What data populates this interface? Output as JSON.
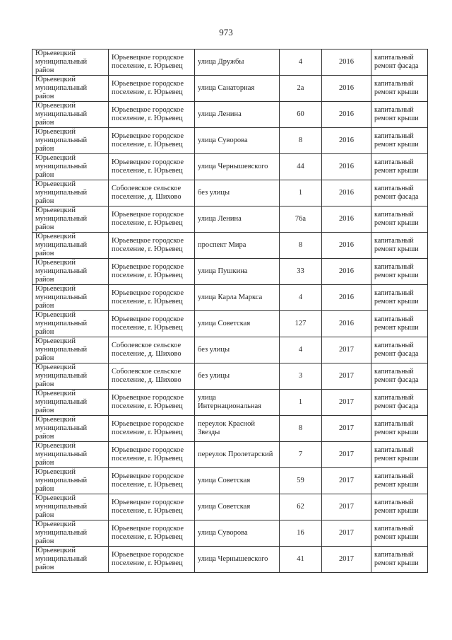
{
  "page_number": "973",
  "rows": [
    [
      "Юрьевецкий муниципальный район",
      "Юрьевецкое городское поселение, г. Юрьевец",
      "улица Дружбы",
      "4",
      "2016",
      "капитальный ремонт фасада"
    ],
    [
      "Юрьевецкий муниципальный район",
      "Юрьевецкое городское поселение, г. Юрьевец",
      "улица Санаторная",
      "2а",
      "2016",
      "капитальный ремонт крыши"
    ],
    [
      "Юрьевецкий муниципальный район",
      "Юрьевецкое городское поселение, г. Юрьевец",
      "улица Ленина",
      "60",
      "2016",
      "капитальный ремонт крыши"
    ],
    [
      "Юрьевецкий муниципальный район",
      "Юрьевецкое городское поселение, г. Юрьевец",
      "улица Суворова",
      "8",
      "2016",
      "капитальный ремонт крыши"
    ],
    [
      "Юрьевецкий муниципальный район",
      "Юрьевецкое городское поселение, г. Юрьевец",
      "улица Чернышевского",
      "44",
      "2016",
      "капитальный ремонт крыши"
    ],
    [
      "Юрьевецкий муниципальный район",
      "Соболевское сельское поселение, д. Шихово",
      "без улицы",
      "1",
      "2016",
      "капитальный ремонт фасада"
    ],
    [
      "Юрьевецкий муниципальный район",
      "Юрьевецкое городское поселение, г. Юрьевец",
      "улица Ленина",
      "76а",
      "2016",
      "капитальный ремонт крыши"
    ],
    [
      "Юрьевецкий муниципальный район",
      "Юрьевецкое городское поселение, г. Юрьевец",
      "проспект Мира",
      "8",
      "2016",
      "капитальный ремонт крыши"
    ],
    [
      "Юрьевецкий муниципальный район",
      "Юрьевецкое городское поселение, г. Юрьевец",
      "улица Пушкина",
      "33",
      "2016",
      "капитальный ремонт крыши"
    ],
    [
      "Юрьевецкий муниципальный район",
      "Юрьевецкое городское поселение, г. Юрьевец",
      "улица Карла Маркса",
      "4",
      "2016",
      "капитальный ремонт крыши"
    ],
    [
      "Юрьевецкий муниципальный район",
      "Юрьевецкое городское поселение, г. Юрьевец",
      "улица Советская",
      "127",
      "2016",
      "капитальный ремонт крыши"
    ],
    [
      "Юрьевецкий муниципальный район",
      "Соболевское сельское поселение, д. Шихово",
      "без улицы",
      "4",
      "2017",
      "капитальный ремонт фасада"
    ],
    [
      "Юрьевецкий муниципальный район",
      "Соболевское сельское поселение, д. Шихово",
      "без улицы",
      "3",
      "2017",
      "капитальный ремонт фасада"
    ],
    [
      "Юрьевецкий муниципальный район",
      "Юрьевецкое городское поселение, г. Юрьевец",
      "улица Интернациональная",
      "1",
      "2017",
      "капитальный ремонт фасада"
    ],
    [
      "Юрьевецкий муниципальный район",
      "Юрьевецкое городское поселение, г. Юрьевец",
      "переулок Красной Звезды",
      "8",
      "2017",
      "капитальный ремонт крыши"
    ],
    [
      "Юрьевецкий муниципальный район",
      "Юрьевецкое городское поселение, г. Юрьевец",
      "переулок Пролетарский",
      "7",
      "2017",
      "капитальный ремонт крыши"
    ],
    [
      "Юрьевецкий муниципальный район",
      "Юрьевецкое городское поселение, г. Юрьевец",
      "улица Советская",
      "59",
      "2017",
      "капитальный ремонт крыши"
    ],
    [
      "Юрьевецкий муниципальный район",
      "Юрьевецкое городское поселение, г. Юрьевец",
      "улица Советская",
      "62",
      "2017",
      "капитальный ремонт крыши"
    ],
    [
      "Юрьевецкий муниципальный район",
      "Юрьевецкое городское поселение, г. Юрьевец",
      "улица Суворова",
      "16",
      "2017",
      "капитальный ремонт крыши"
    ],
    [
      "Юрьевецкий муниципальный район",
      "Юрьевецкое городское поселение, г. Юрьевец",
      "улица Чернышевского",
      "41",
      "2017",
      "капитальный ремонт крыши"
    ]
  ]
}
